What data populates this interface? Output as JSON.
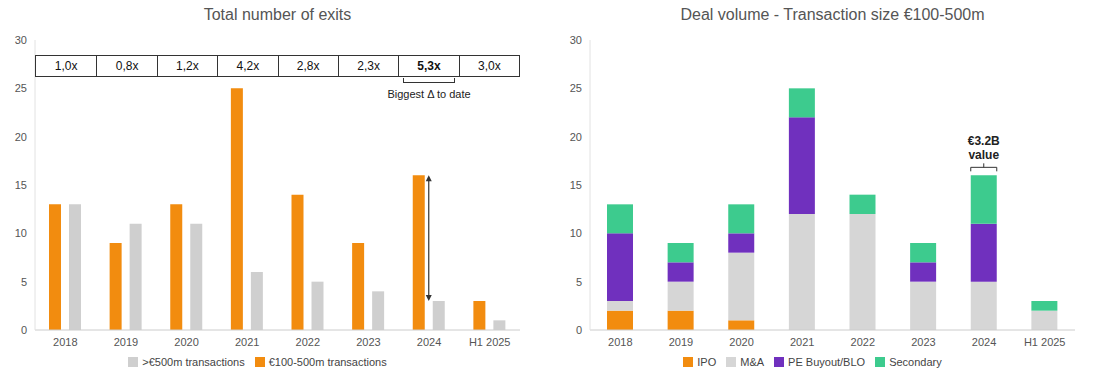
{
  "chart_data": [
    {
      "type": "bar",
      "title": "Total number of exits",
      "categories": [
        "2018",
        "2019",
        "2020",
        "2021",
        "2022",
        "2023",
        "2024",
        "H1 2025"
      ],
      "series": [
        {
          "name": "€100-500m transactions",
          "color": "#F28C0F",
          "values": [
            13,
            9,
            13,
            25,
            14,
            9,
            16,
            3
          ]
        },
        {
          "name": ">€500m transactions",
          "color": "#CFCFCF",
          "values": [
            13,
            11,
            11,
            6,
            5,
            4,
            3,
            1
          ]
        }
      ],
      "ratios": [
        {
          "value": 1.0,
          "label": "1,0x"
        },
        {
          "value": 0.8,
          "label": "0,8x"
        },
        {
          "value": 1.2,
          "label": "1,2x"
        },
        {
          "value": 4.2,
          "label": "4,2x"
        },
        {
          "value": 2.8,
          "label": "2,8x"
        },
        {
          "value": 2.3,
          "label": "2,3x"
        },
        {
          "value": 5.3,
          "label": "5,3x"
        },
        {
          "value": 3.0,
          "label": "3,0x"
        }
      ],
      "annotations": [
        {
          "text": "Biggest Δ to date",
          "category": "2024"
        }
      ],
      "ylim": [
        0,
        30
      ],
      "yticks": [
        0,
        5,
        10,
        15,
        20,
        25,
        30
      ],
      "grid": false,
      "legend": "bottom"
    },
    {
      "type": "bar",
      "title": "Deal volume - Transaction size €100-500m",
      "categories": [
        "2018",
        "2019",
        "2020",
        "2021",
        "2022",
        "2023",
        "2024",
        "H1 2025"
      ],
      "series": [
        {
          "name": "IPO",
          "color": "#F28C0F",
          "values": [
            2,
            2,
            1,
            0,
            0,
            0,
            0,
            0
          ]
        },
        {
          "name": "M&A",
          "color": "#D6D6D6",
          "values": [
            1,
            3,
            7,
            12,
            12,
            5,
            5,
            2
          ]
        },
        {
          "name": "PE Buyout/BLO",
          "color": "#7030BE",
          "values": [
            7,
            2,
            2,
            10,
            0,
            2,
            6,
            0
          ]
        },
        {
          "name": "Secondary",
          "color": "#3DCB8E",
          "values": [
            3,
            2,
            3,
            3,
            2,
            2,
            5,
            1
          ]
        }
      ],
      "annotations": [
        {
          "text": "€3.2B value",
          "category": "2024"
        }
      ],
      "ylim": [
        0,
        30
      ],
      "yticks": [
        0,
        5,
        10,
        15,
        20,
        25,
        30
      ],
      "grid": false,
      "legend": "bottom",
      "stacked": true
    }
  ]
}
